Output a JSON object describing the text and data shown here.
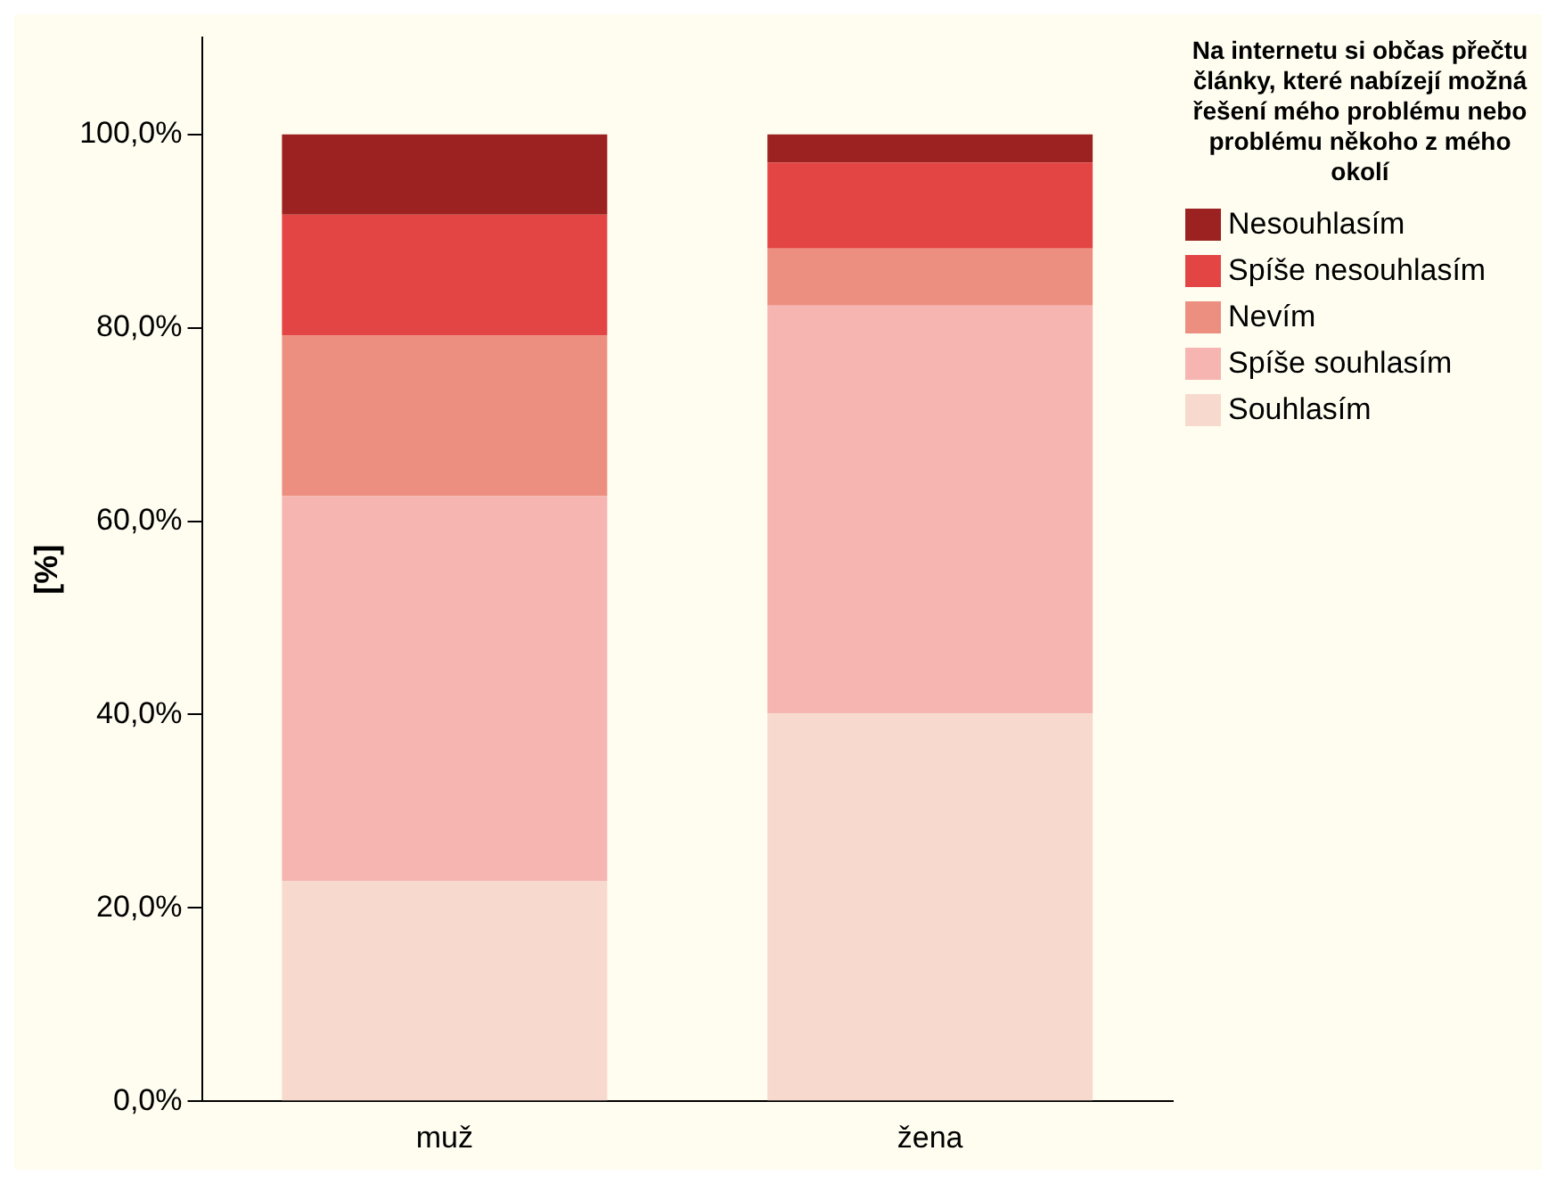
{
  "chart_data": {
    "type": "bar",
    "stacked": true,
    "categories": [
      "muž",
      "žena"
    ],
    "ylabel": "[%]",
    "legend_title": "Na internetu si občas přečtu články, které nabízejí možná řešení mého problému nebo problému někoho z mého okolí",
    "legend": "right",
    "grid": false,
    "ylim": [
      0,
      110
    ],
    "yticks": [
      {
        "value": 0,
        "label": "0,0%"
      },
      {
        "value": 20,
        "label": "20,0%"
      },
      {
        "value": 40,
        "label": "40,0%"
      },
      {
        "value": 60,
        "label": "60,0%"
      },
      {
        "value": 80,
        "label": "80,0%"
      },
      {
        "value": 100,
        "label": "100,0%"
      }
    ],
    "series": [
      {
        "name": "Souhlasím",
        "color": "#f7dacd",
        "values": [
          22.8,
          40.1
        ]
      },
      {
        "name": "Spíše souhlasím",
        "color": "#f6b5b1",
        "values": [
          39.8,
          42.2
        ]
      },
      {
        "name": "Nevím",
        "color": "#ec8f80",
        "values": [
          16.6,
          5.9
        ]
      },
      {
        "name": "Spíše nesouhlasím",
        "color": "#e34545",
        "values": [
          12.5,
          8.9
        ]
      },
      {
        "name": "Nesouhlasím",
        "color": "#9b2220",
        "values": [
          8.3,
          2.9
        ]
      }
    ]
  }
}
